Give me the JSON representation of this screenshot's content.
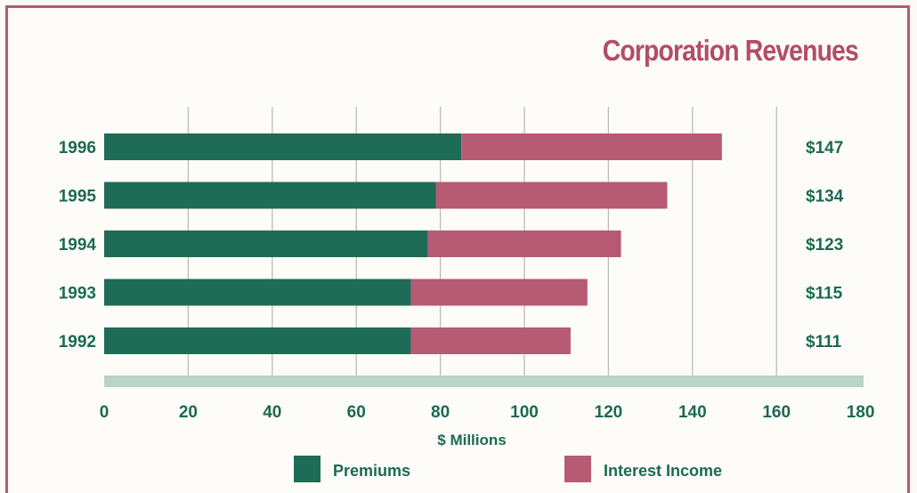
{
  "chart_data": {
    "type": "bar",
    "orientation": "horizontal",
    "stacked": true,
    "title": "Corporation Revenues",
    "xlabel": "$ Millions",
    "ylabel": "",
    "categories": [
      "1996",
      "1995",
      "1994",
      "1993",
      "1992"
    ],
    "series": [
      {
        "name": "Premiums",
        "values": [
          85,
          79,
          77,
          73,
          73
        ],
        "color": "#1f6c56"
      },
      {
        "name": "Interest Income",
        "values": [
          62,
          55,
          46,
          42,
          38
        ],
        "color": "#b75a74"
      }
    ],
    "totals": [
      "$147",
      "$134",
      "$123",
      "$115",
      "$111"
    ],
    "xlim": [
      0,
      180
    ],
    "xticks": [
      "0",
      "20",
      "40",
      "60",
      "80",
      "100",
      "120",
      "140",
      "160",
      "180"
    ],
    "grid": true,
    "legend_position": "bottom"
  }
}
